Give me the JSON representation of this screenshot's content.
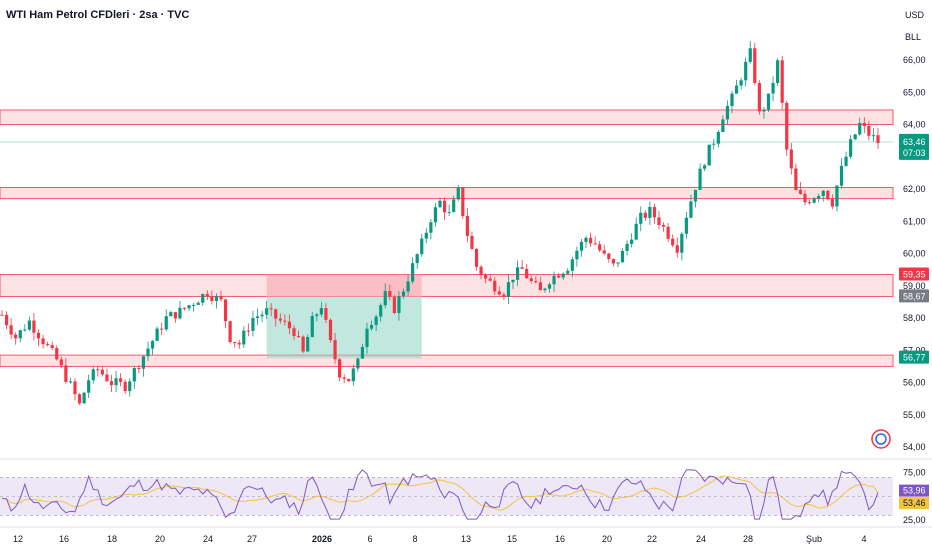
{
  "header": {
    "title": "WTI Ham Petrol CFDleri · 2sa · TVC",
    "currency": "USD",
    "unit": "BLL"
  },
  "colors": {
    "up": "#089981",
    "down": "#f23645",
    "zone_fill": "#fde2e4",
    "zone_stroke": "#f23645",
    "box_green": "#8fd3c3",
    "box_red": "#f7a9b0",
    "rsi_line": "#7e57c2",
    "rsi_ma": "#f5c242",
    "rsi_band": "#ede7f6",
    "price_line": "#089981"
  },
  "chart_data": [
    {
      "type": "candlestick",
      "title": "WTI Ham Petrol CFDleri · 2sa · TVC",
      "ylim": [
        54.0,
        66.6
      ],
      "price_ticks": [
        "66,00",
        "65,00",
        "64,00",
        "62,00",
        "61,00",
        "60,00",
        "59,00",
        "58,00",
        "57,00",
        "56,00",
        "55,00",
        "54,00"
      ],
      "x_ticks": [
        "12",
        "16",
        "18",
        "20",
        "24",
        "27",
        "2026",
        "6",
        "8",
        "13",
        "15",
        "16",
        "20",
        "22",
        "24",
        "28",
        "Şub",
        "4"
      ],
      "close_path": [
        [
          0,
          58.1
        ],
        [
          3,
          57.4
        ],
        [
          6,
          57.9
        ],
        [
          9,
          57.3
        ],
        [
          12,
          56.7
        ],
        [
          15,
          55.9
        ],
        [
          17,
          55.3
        ],
        [
          19,
          56.1
        ],
        [
          21,
          56.4
        ],
        [
          24,
          56.0
        ],
        [
          27,
          55.9
        ],
        [
          30,
          56.6
        ],
        [
          33,
          57.3
        ],
        [
          36,
          58.0
        ],
        [
          39,
          58.2
        ],
        [
          42,
          58.5
        ],
        [
          45,
          58.8
        ],
        [
          48,
          58.5
        ],
        [
          50,
          57.4
        ],
        [
          52,
          57.2
        ],
        [
          55,
          58.0
        ],
        [
          58,
          58.2
        ],
        [
          61,
          57.9
        ],
        [
          64,
          57.6
        ],
        [
          66,
          56.9
        ],
        [
          68,
          57.9
        ],
        [
          70,
          58.4
        ],
        [
          72,
          57.2
        ],
        [
          74,
          56.3
        ],
        [
          76,
          56.1
        ],
        [
          78,
          56.6
        ],
        [
          80,
          57.8
        ],
        [
          82,
          58.1
        ],
        [
          84,
          58.7
        ],
        [
          86,
          58.3
        ],
        [
          88,
          58.9
        ],
        [
          90,
          59.6
        ],
        [
          92,
          60.3
        ],
        [
          94,
          61.1
        ],
        [
          96,
          61.6
        ],
        [
          98,
          61.2
        ],
        [
          100,
          61.9
        ],
        [
          102,
          60.6
        ],
        [
          104,
          59.6
        ],
        [
          106,
          59.2
        ],
        [
          108,
          59.0
        ],
        [
          110,
          58.8
        ],
        [
          112,
          59.3
        ],
        [
          114,
          59.5
        ],
        [
          116,
          59.1
        ],
        [
          118,
          58.8
        ],
        [
          120,
          59.2
        ],
        [
          122,
          59.4
        ],
        [
          124,
          59.6
        ],
        [
          126,
          60.1
        ],
        [
          128,
          60.5
        ],
        [
          130,
          60.3
        ],
        [
          132,
          59.9
        ],
        [
          134,
          59.6
        ],
        [
          136,
          60.0
        ],
        [
          138,
          60.6
        ],
        [
          140,
          61.1
        ],
        [
          142,
          61.3
        ],
        [
          144,
          61.0
        ],
        [
          146,
          60.6
        ],
        [
          148,
          60.2
        ],
        [
          150,
          61.2
        ],
        [
          152,
          62.1
        ],
        [
          154,
          62.9
        ],
        [
          156,
          63.5
        ],
        [
          158,
          64.3
        ],
        [
          160,
          64.8
        ],
        [
          162,
          65.5
        ],
        [
          164,
          66.2
        ],
        [
          165,
          65.4
        ],
        [
          166,
          64.3
        ],
        [
          168,
          64.8
        ],
        [
          170,
          65.9
        ],
        [
          171,
          64.6
        ],
        [
          172,
          63.2
        ],
        [
          174,
          61.9
        ],
        [
          176,
          61.6
        ],
        [
          178,
          61.8
        ],
        [
          180,
          62.0
        ],
        [
          182,
          61.6
        ],
        [
          184,
          62.6
        ],
        [
          186,
          63.4
        ],
        [
          188,
          64.0
        ],
        [
          190,
          63.7
        ],
        [
          192,
          63.46
        ]
      ],
      "candle_count": 193,
      "levels": [
        {
          "label": "59,35",
          "value": 59.35,
          "color": "#f23645"
        },
        {
          "label": "58,67",
          "value": 58.67,
          "color": "#787b86"
        },
        {
          "label": "56,77",
          "value": 56.77,
          "color": "#089981"
        }
      ],
      "zones": [
        {
          "low": 64.0,
          "high": 64.45
        },
        {
          "low": 61.7,
          "high": 62.05
        },
        {
          "low": 58.67,
          "high": 59.35
        },
        {
          "low": 56.5,
          "high": 56.85
        }
      ],
      "position_box": {
        "x_from": 58,
        "x_to": 92,
        "entry": 58.65,
        "stop": 59.35,
        "target": 56.75
      },
      "last_price": {
        "label": "63,46",
        "value": 63.46,
        "countdown": "07:03"
      }
    },
    {
      "type": "line",
      "name": "RSI",
      "ylim": [
        25,
        80
      ],
      "ticks": [
        "75,00",
        "25,00"
      ],
      "band": [
        30,
        70
      ],
      "rsi_label": "53,96",
      "rsi_value": 53.96,
      "ma_label": "53,46",
      "ma_value": 53.46
    }
  ]
}
